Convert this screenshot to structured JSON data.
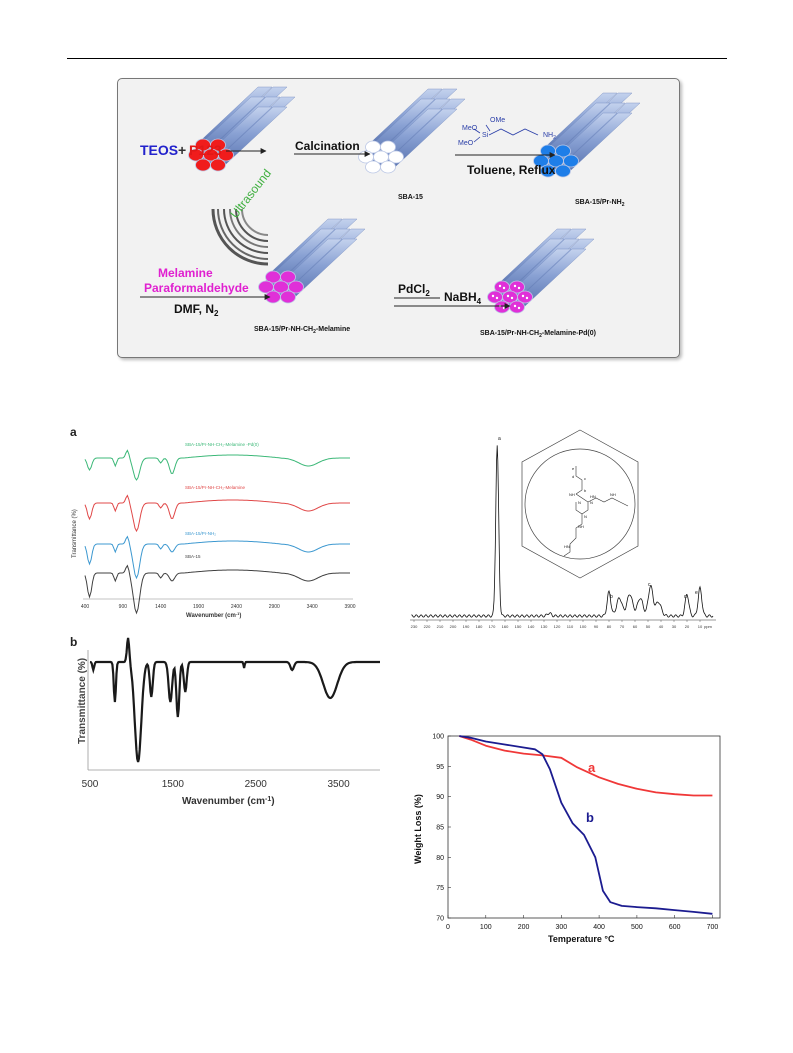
{
  "scheme": {
    "teos": "TEOS",
    "plus": "+",
    "p123": "P123",
    "calcination": "Calcination",
    "sba15": "SBA-15",
    "reagent_ome": "OMe",
    "reagent_meo1": "MeO",
    "reagent_meo2": "MeO",
    "reagent_si": "Si",
    "reagent_nh2": "NH",
    "reagent_nh2_sub": "2",
    "toluene": "Toluene, Reflux",
    "sba15_prnh2": "SBA-15/Pr-NH",
    "sba15_prnh2_sub": "2",
    "ultrasound": "Ultrasound",
    "melamine": "Melamine",
    "paraformaldehyde": "Paraformaldehyde",
    "dmf": "DMF, N",
    "dmf_sub": "2",
    "product_melamine_a": "SBA-15/Pr-NH-CH",
    "product_melamine_sub": "2",
    "product_melamine_b": "-Melamine",
    "pdcl2": "PdCl",
    "pdcl2_sub": "2",
    "nabh4": "NaBH",
    "nabh4_sub": "4",
    "product_pd_a": "SBA-15/Pr-NH-CH",
    "product_pd_sub": "2",
    "product_pd_b": "-Melamine-Pd(0)",
    "colors": {
      "teos": "#2222cc",
      "p123": "#e01818",
      "melamine": "#e020d0",
      "ultrasound": "#40b040",
      "rod": "#8aa4d6",
      "red": "#f01c1c",
      "white": "#ffffff",
      "blue": "#1e7ee8",
      "magenta": "#e030d8"
    }
  },
  "ftir_a": {
    "panel_label": "a",
    "ylabel": "Transmittance (%)",
    "xlabel": "Wavenumber (cm",
    "xlabel_sup": "-1",
    "xlabel_end": ")",
    "x_ticks": [
      "400",
      "900",
      "1400",
      "1900",
      "2400",
      "2900",
      "3400",
      "3900"
    ],
    "series_labels": [
      "SBA-15/Pr-NH-CH₂-Melamine -Pd(0)",
      "SBA-15/Pr-NH-CH₂-Melamine",
      "SBA-15/Pr-NH₂",
      "SBA-15"
    ],
    "colors": [
      "#3cb878",
      "#e04848",
      "#3c98d0",
      "#404040"
    ]
  },
  "ftir_b": {
    "panel_label": "b",
    "ylabel": "Transmittance (%)",
    "xlabel": "Wavenumber (cm",
    "xlabel_sup": "-1",
    "xlabel_end": ")",
    "x_ticks": [
      "500",
      "1500",
      "2500",
      "3500"
    ]
  },
  "nmr": {
    "x_ticks": [
      "230",
      "220",
      "210",
      "200",
      "190",
      "180",
      "170",
      "160",
      "150",
      "140",
      "130",
      "120",
      "110",
      "100",
      "90",
      "80",
      "70",
      "60",
      "50",
      "40",
      "30",
      "20",
      "10",
      "ppm"
    ],
    "peak_labels": [
      "a",
      "b",
      "c",
      "d",
      "e"
    ],
    "structure_labels": [
      "e",
      "d",
      "c",
      "b",
      "NH",
      "N",
      "N",
      "N",
      "HN",
      "NH",
      "NH",
      "HN"
    ]
  },
  "chart_data": [
    {
      "type": "line",
      "title": "",
      "xlabel": "Temperature °C",
      "ylabel": "Weight Loss (%)",
      "xlim": [
        0,
        720
      ],
      "ylim": [
        70,
        100
      ],
      "x_ticks": [
        0,
        100,
        200,
        300,
        400,
        500,
        600,
        700
      ],
      "y_ticks": [
        70,
        75,
        80,
        85,
        90,
        95,
        100
      ],
      "series": [
        {
          "name": "a",
          "color": "#f03838",
          "x": [
            30,
            60,
            100,
            150,
            200,
            250,
            300,
            340,
            400,
            450,
            500,
            550,
            600,
            650,
            700
          ],
          "y": [
            100,
            99.4,
            98.4,
            97.6,
            97.1,
            96.8,
            96.4,
            94.9,
            93.2,
            92.1,
            91.3,
            90.7,
            90.4,
            90.2,
            90.2
          ]
        },
        {
          "name": "b",
          "color": "#1c1c90",
          "x": [
            30,
            60,
            100,
            150,
            200,
            230,
            250,
            270,
            300,
            330,
            360,
            390,
            410,
            430,
            460,
            500,
            550,
            600,
            650,
            700
          ],
          "y": [
            100,
            99.7,
            99.1,
            98.6,
            98.1,
            97.8,
            97.0,
            94.5,
            89.0,
            85.6,
            83.7,
            80.0,
            74.5,
            72.6,
            72.0,
            71.8,
            71.6,
            71.3,
            71.0,
            70.7
          ]
        }
      ]
    }
  ]
}
